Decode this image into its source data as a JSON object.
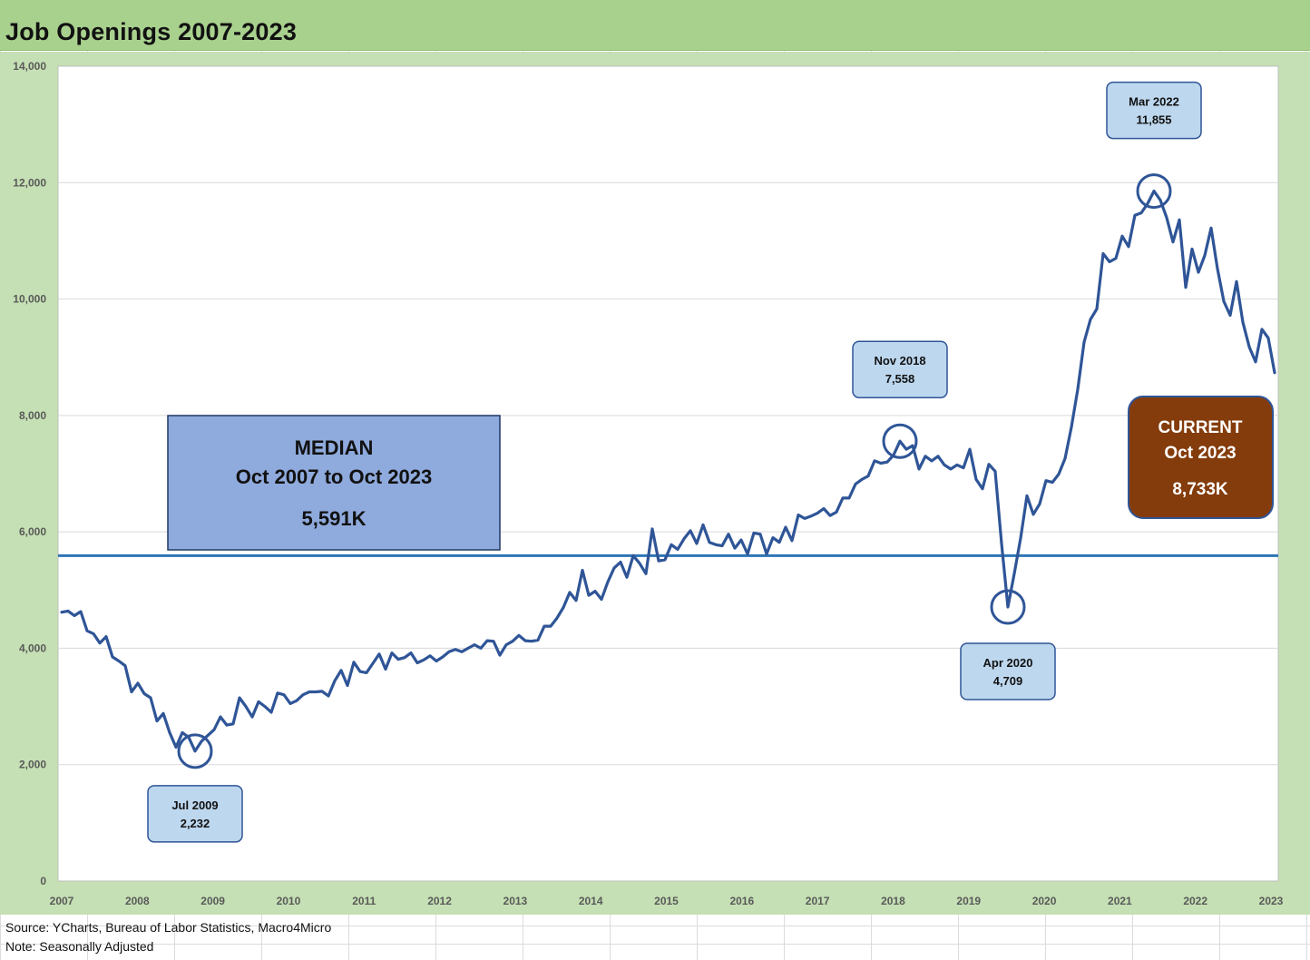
{
  "title": "Job Openings 2007-2023",
  "source_note": "Source: YCharts, Bureau of Labor Statistics, Macro4Micro",
  "adjust_note": "Note: Seasonally Adjusted",
  "colors": {
    "title_bar": "#a9d18e",
    "outer_area": "#c5e0b4",
    "line": "#2f5597",
    "median_line": "#2e75b6",
    "median_box": "#8faadc",
    "callout_fill": "#bdd7ee",
    "current_box": "#843c0c"
  },
  "chart_data": {
    "type": "line",
    "title": "Job Openings 2007-2023",
    "xlabel": "",
    "ylabel": "",
    "ylim": [
      0,
      14000
    ],
    "yticks": [
      0,
      2000,
      4000,
      6000,
      8000,
      10000,
      12000,
      14000
    ],
    "ytick_labels": [
      "0",
      "2,000",
      "4,000",
      "6,000",
      "8,000",
      "10,000",
      "12,000",
      "14,000"
    ],
    "xtick_labels": [
      "2007",
      "2008",
      "2009",
      "2010",
      "2011",
      "2012",
      "2013",
      "2014",
      "2015",
      "2016",
      "2017",
      "2018",
      "2019",
      "2020",
      "2021",
      "2022",
      "2023"
    ],
    "grid": true,
    "series": [
      {
        "values": [
          4620,
          4640,
          4560,
          4630,
          4300,
          4250,
          4090,
          4200,
          3850,
          3780,
          3700,
          3250,
          3400,
          3220,
          3150,
          2750,
          2880,
          2550,
          2300,
          2550,
          2470,
          2232,
          2400,
          2500,
          2600,
          2820,
          2680,
          2700,
          3150,
          3000,
          2820,
          3080,
          3000,
          2900,
          3230,
          3200,
          3050,
          3100,
          3200,
          3250,
          3250,
          3260,
          3180,
          3440,
          3620,
          3360,
          3760,
          3600,
          3580,
          3740,
          3900,
          3640,
          3920,
          3810,
          3840,
          3920,
          3750,
          3800,
          3870,
          3780,
          3850,
          3940,
          3980,
          3940,
          4000,
          4060,
          4000,
          4130,
          4120,
          3880,
          4060,
          4120,
          4220,
          4130,
          4120,
          4140,
          4380,
          4380,
          4520,
          4700,
          4960,
          4820,
          5340,
          4910,
          4980,
          4840,
          5140,
          5380,
          5480,
          5220,
          5590,
          5460,
          5280,
          6050,
          5500,
          5520,
          5780,
          5700,
          5880,
          6020,
          5800,
          6120,
          5820,
          5780,
          5760,
          5960,
          5720,
          5860,
          5620,
          5980,
          5960,
          5620,
          5900,
          5820,
          6080,
          5850,
          6290,
          6230,
          6270,
          6320,
          6400,
          6280,
          6340,
          6580,
          6580,
          6820,
          6900,
          6960,
          7220,
          7180,
          7200,
          7320,
          7558,
          7420,
          7480,
          7080,
          7300,
          7220,
          7300,
          7150,
          7080,
          7150,
          7100,
          7420,
          6900,
          6740,
          7160,
          7040,
          5800,
          4709,
          5280,
          5890,
          6620,
          6300,
          6480,
          6880,
          6850,
          6990,
          7260,
          7800,
          8450,
          9260,
          9650,
          9830,
          10780,
          10640,
          10700,
          11080,
          10900,
          11440,
          11480,
          11640,
          11855,
          11700,
          11400,
          10980,
          11360,
          10200,
          10860,
          10460,
          10750,
          11220,
          10520,
          9960,
          9720,
          10300,
          9600,
          9180,
          8920,
          9480,
          9330,
          8733
        ]
      }
    ],
    "median_value": 5591,
    "median_box": {
      "line1": "MEDIAN",
      "line2": "Oct 2007 to Oct 2023",
      "line3": "5,591K"
    },
    "current_box": {
      "line1": "CURRENT",
      "line2": "Oct 2023",
      "line3": "8,733K"
    },
    "callouts": [
      {
        "label": "Jul 2009",
        "value_text": "2,232",
        "index": 21
      },
      {
        "label": "Nov 2018",
        "value_text": "7,558",
        "index": 132
      },
      {
        "label": "Apr 2020",
        "value_text": "4,709",
        "index": 149
      },
      {
        "label": "Mar 2022",
        "value_text": "11,855",
        "index": 172
      }
    ]
  }
}
